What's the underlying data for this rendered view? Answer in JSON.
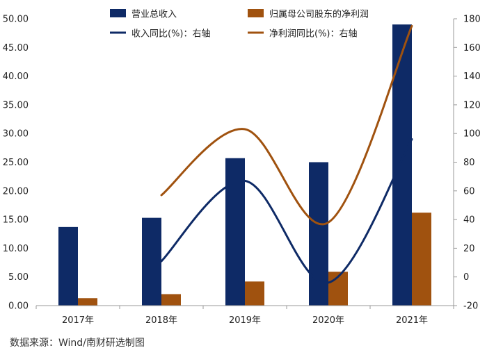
{
  "chart_data": {
    "type": "bar",
    "categories": [
      "2017年",
      "2018年",
      "2019年",
      "2020年",
      "2021年"
    ],
    "series": [
      {
        "name": "营业总收入",
        "kind": "bar",
        "axis": "left",
        "color": "#0e2a66",
        "values": [
          13.7,
          15.3,
          25.7,
          25.0,
          49.0
        ]
      },
      {
        "name": "归属母公司股东的净利润",
        "kind": "bar",
        "axis": "left",
        "color": "#a0520f",
        "values": [
          1.3,
          2.0,
          4.2,
          5.9,
          16.2
        ]
      },
      {
        "name": "收入同比(%)：右轴",
        "kind": "line",
        "axis": "right",
        "color": "#0e2a66",
        "values": [
          null,
          11,
          67,
          -4,
          96
        ]
      },
      {
        "name": "净利润同比(%)：右轴",
        "kind": "line",
        "axis": "right",
        "color": "#a0520f",
        "values": [
          null,
          57,
          103,
          38,
          175
        ]
      }
    ],
    "left_axis": {
      "min": 0,
      "max": 50,
      "step": 5,
      "tick_labels": [
        "0.00",
        "5.00",
        "10.00",
        "15.00",
        "20.00",
        "25.00",
        "30.00",
        "35.00",
        "40.00",
        "45.00",
        "50.00"
      ]
    },
    "right_axis": {
      "min": -20,
      "max": 180,
      "step": 20,
      "tick_labels": [
        "-20",
        "0",
        "20",
        "40",
        "60",
        "80",
        "100",
        "120",
        "140",
        "160",
        "180"
      ]
    },
    "grid": false,
    "legend": "top"
  },
  "source_note": "数据来源：Wind/南财研选制图"
}
